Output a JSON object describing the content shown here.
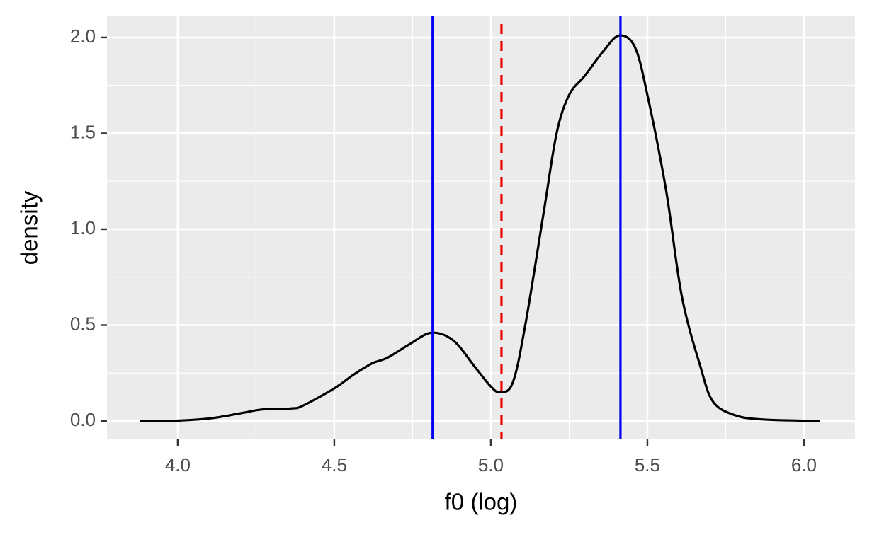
{
  "chart_data": {
    "type": "line",
    "x_label": "f0 (log)",
    "y_label": "density",
    "series": [
      {
        "color": "#000000",
        "x": [
          3.88,
          4.0,
          4.11,
          4.2,
          4.27,
          4.36,
          4.4,
          4.5,
          4.56,
          4.62,
          4.67,
          4.74,
          4.81,
          4.88,
          4.95,
          5.0,
          5.03,
          5.07,
          5.11,
          5.17,
          5.21,
          5.25,
          5.3,
          5.36,
          5.41,
          5.46,
          5.5,
          5.56,
          5.61,
          5.67,
          5.71,
          5.78,
          5.87,
          6.05
        ],
        "values": [
          0,
          0.002,
          0.015,
          0.04,
          0.06,
          0.065,
          0.08,
          0.17,
          0.24,
          0.3,
          0.33,
          0.4,
          0.46,
          0.42,
          0.28,
          0.18,
          0.15,
          0.2,
          0.5,
          1.1,
          1.5,
          1.7,
          1.8,
          1.93,
          2.01,
          1.95,
          1.7,
          1.2,
          0.65,
          0.28,
          0.1,
          0.03,
          0.008,
          0
        ]
      }
    ],
    "reference_lines": [
      {
        "x": 4.814,
        "color": "#0000ee",
        "dashed": false
      },
      {
        "x": 5.414,
        "color": "#0000ee",
        "dashed": false
      },
      {
        "x": 5.034,
        "color": "#ee0000",
        "dashed": true
      }
    ],
    "xlim": [
      3.774,
      6.163
    ],
    "ylim": [
      -0.096,
      2.114
    ],
    "xticks": [
      {
        "value": 4,
        "label": "4.0"
      },
      4.5,
      {
        "value": 5,
        "label": "5.0"
      },
      5.5,
      {
        "value": 6,
        "label": "6.0"
      }
    ],
    "yticks": [
      {
        "value": 0,
        "label": "0.0"
      },
      0.5,
      {
        "value": 1,
        "label": "1.0"
      },
      1.5,
      {
        "value": 2,
        "label": "2.0"
      }
    ],
    "x_minor_ticks": [
      4.25,
      4.75,
      5.25,
      5.75
    ],
    "y_minor_ticks": [
      0.25,
      0.75,
      1.25,
      1.75
    ],
    "grid": true
  }
}
